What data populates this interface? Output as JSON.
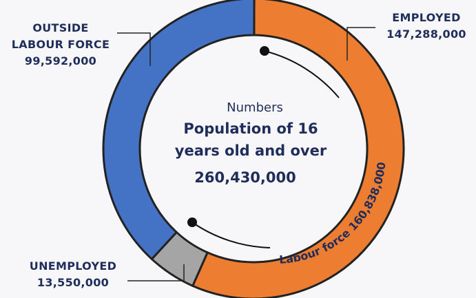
{
  "chart_data": {
    "type": "pie",
    "variant": "donut",
    "total_label": "Numbers",
    "total_title_line1": "Population of 16",
    "total_title_line2": "years old and over",
    "total_value_text": "260,430,000",
    "total_value": 260430000,
    "slices": [
      {
        "key": "employed",
        "label_line1": "EMPLOYED",
        "label_line2": "",
        "value_text": "147,288,000",
        "value": 147288000,
        "color": "#ed7d31"
      },
      {
        "key": "unemployed",
        "label_line1": "UNEMPLOYED",
        "label_line2": "",
        "value_text": "13,550,000",
        "value": 13550000,
        "color": "#a5a5a5"
      },
      {
        "key": "outside",
        "label_line1": "OUTSIDE",
        "label_line2": "LABOUR FORCE",
        "value_text": "99,592,000",
        "value": 99592000,
        "color": "#4472c4"
      }
    ],
    "bracket": {
      "text": "Labour force 160,838,000",
      "value": 160838000
    }
  }
}
